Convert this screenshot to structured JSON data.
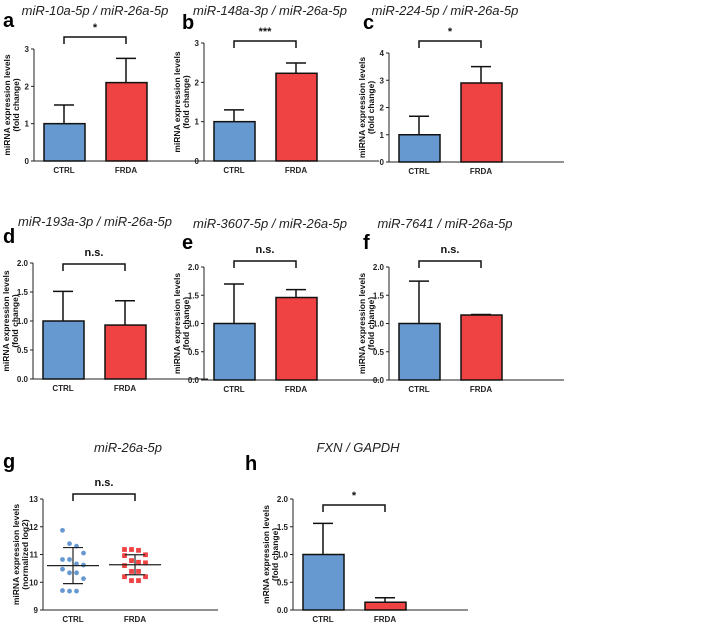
{
  "colors": {
    "ctrl": "#6699d0",
    "frda": "#ef4343",
    "ink": "#111111"
  },
  "chart_data": [
    {
      "panel": "a",
      "type": "bar",
      "title": "miR-10a-5p / miR-26a-5p",
      "ylabel": [
        "miRNA expression levels",
        "(fold change)"
      ],
      "categories": [
        "CTRL",
        "FRDA"
      ],
      "values": [
        1.0,
        2.1
      ],
      "errors": [
        0.5,
        0.65
      ],
      "ylim": [
        0,
        3
      ],
      "yticks": [
        "0",
        "1",
        "2",
        "3"
      ],
      "significance": "*"
    },
    {
      "panel": "b",
      "type": "bar",
      "title": "miR-148a-3p / miR-26a-5p",
      "ylabel": [
        "miRNA expression levels",
        "(fold change)"
      ],
      "categories": [
        "CTRL",
        "FRDA"
      ],
      "values": [
        1.0,
        2.23
      ],
      "errors": [
        0.3,
        0.26
      ],
      "ylim": [
        0,
        3
      ],
      "yticks": [
        "0",
        "1",
        "2",
        "3"
      ],
      "significance": "***"
    },
    {
      "panel": "c",
      "type": "bar",
      "title": "miR-224-5p / miR-26a-5p",
      "ylabel": [
        "miRNA expression levels",
        "(fold change)"
      ],
      "categories": [
        "CTRL",
        "FRDA"
      ],
      "values": [
        1.0,
        2.9
      ],
      "errors": [
        0.68,
        0.6
      ],
      "ylim": [
        0,
        4
      ],
      "yticks": [
        "0",
        "1",
        "2",
        "3",
        "4"
      ],
      "significance": "*"
    },
    {
      "panel": "d",
      "type": "bar",
      "title": "miR-193a-3p / miR-26a-5p",
      "ylabel": [
        "miRNA expression levels",
        "(fold change)"
      ],
      "categories": [
        "CTRL",
        "FRDA"
      ],
      "values": [
        1.0,
        0.93
      ],
      "errors": [
        0.51,
        0.42
      ],
      "ylim": [
        0,
        2
      ],
      "yticks": [
        "0.0",
        "0.5",
        "1.0",
        "1.5",
        "2.0"
      ],
      "significance": "n.s."
    },
    {
      "panel": "e",
      "type": "bar",
      "title": "miR-3607-5p / miR-26a-5p",
      "ylabel": [
        "miRNA expression levels",
        "(fold change)"
      ],
      "categories": [
        "CTRL",
        "FRDA"
      ],
      "values": [
        1.0,
        1.46
      ],
      "errors": [
        0.7,
        0.14
      ],
      "ylim": [
        0,
        2
      ],
      "yticks": [
        "0.0",
        "0.5",
        "1.0",
        "1.5",
        "2.0"
      ],
      "significance": "n.s."
    },
    {
      "panel": "f",
      "type": "bar",
      "title": "miR-7641 / miR-26a-5p",
      "ylabel": [
        "miRNA expression levels",
        "(fold change)"
      ],
      "categories": [
        "CTRL",
        "FRDA"
      ],
      "values": [
        1.0,
        1.15
      ],
      "errors": [
        0.75,
        0.01
      ],
      "ylim": [
        0,
        2
      ],
      "yticks": [
        "0.0",
        "0.5",
        "1.0",
        "1.5",
        "2.0"
      ],
      "significance": "n.s."
    },
    {
      "panel": "g",
      "type": "scatter",
      "title": "miR-26a-5p",
      "ylabel": [
        "miRNA expression levels",
        "(normalized log2)"
      ],
      "categories": [
        "CTRL",
        "FRDA"
      ],
      "points": [
        [
          11.87,
          11.39,
          11.3,
          11.05,
          10.82,
          10.82,
          10.66,
          10.62,
          10.47,
          10.34,
          10.34,
          10.13,
          9.7,
          9.68,
          9.68
        ],
        [
          11.18,
          11.18,
          11.15,
          10.99,
          10.96,
          10.78,
          10.72,
          10.7,
          10.6,
          10.39,
          10.39,
          10.2,
          10.2,
          10.06,
          10.06
        ]
      ],
      "means": [
        10.6,
        10.63
      ],
      "sd": [
        0.65,
        0.36
      ],
      "ylim": [
        9,
        13
      ],
      "yticks": [
        "9",
        "10",
        "11",
        "12",
        "13"
      ],
      "significance": "n.s."
    },
    {
      "panel": "h",
      "type": "bar",
      "title": "FXN / GAPDH",
      "ylabel": [
        "mRNA expression levels",
        "(fold change)"
      ],
      "categories": [
        "CTRL",
        "FRDA"
      ],
      "values": [
        1.0,
        0.14
      ],
      "errors": [
        0.56,
        0.08
      ],
      "ylim": [
        0,
        2
      ],
      "yticks": [
        "0.0",
        "0.5",
        "1.0",
        "1.5",
        "2.0"
      ],
      "significance": "*"
    }
  ]
}
